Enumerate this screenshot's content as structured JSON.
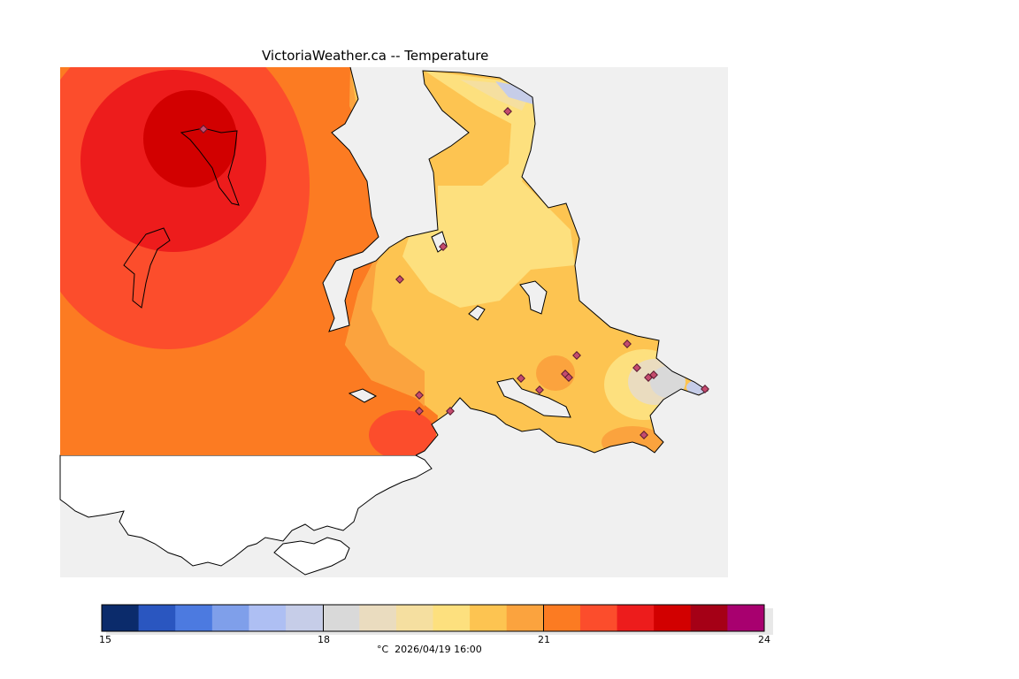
{
  "title": "VictoriaWeather.ca -- Temperature",
  "legend": {
    "tick_labels": [
      "15",
      "18",
      "21",
      "24"
    ],
    "caption": "°C  2026/04/19 16:00",
    "colors": [
      "#0b2b6b",
      "#2a56c0",
      "#4c7ae0",
      "#7f9fea",
      "#aebff3",
      "#c6cde8",
      "#d9d9d9",
      "#eadcbf",
      "#f5dfa0",
      "#fde07e",
      "#fdc451",
      "#fba33e",
      "#fc7b22",
      "#fc4d2c",
      "#ed1c1c",
      "#d20000",
      "#a50016",
      "#a8006f"
    ]
  },
  "map": {
    "background": "#f0f0f0",
    "land_outside": "#ffffff",
    "station_color": "#c44b6e"
  }
}
